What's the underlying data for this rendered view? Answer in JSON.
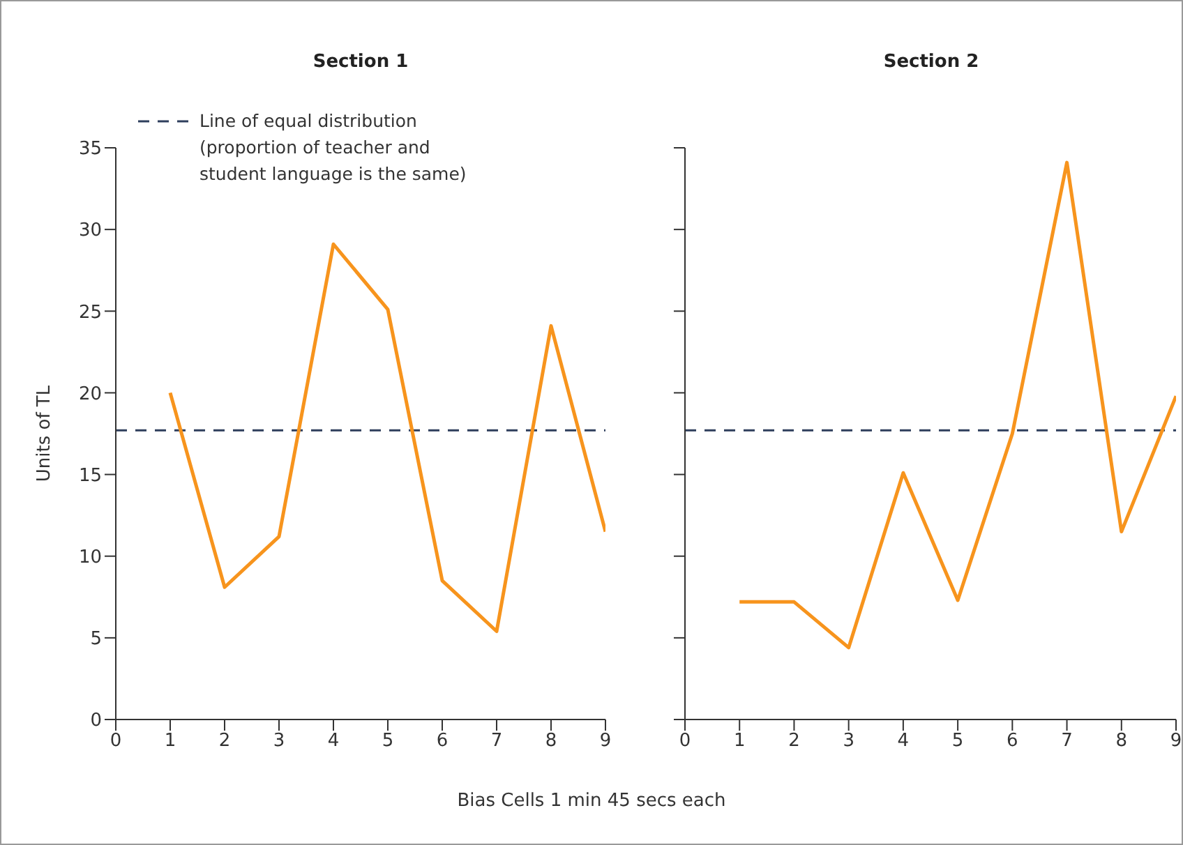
{
  "chart_data": [
    {
      "type": "line",
      "title": "Section 1",
      "xlabel": "Bias Cells 1 min 45 secs each",
      "ylabel": "Units of TL",
      "x": [
        1,
        2,
        3,
        4,
        5,
        6,
        7,
        8,
        9
      ],
      "series": [
        {
          "color": "#f7941d",
          "values": [
            20,
            8.1,
            11.2,
            29.1,
            25.1,
            8.5,
            5.4,
            24.1,
            11.5
          ]
        }
      ],
      "xlim": [
        0,
        9
      ],
      "xticks": [
        0,
        1,
        2,
        3,
        4,
        5,
        6,
        7,
        8,
        9
      ],
      "ylim": [
        0,
        35
      ],
      "yticks": [
        0,
        5,
        10,
        15,
        20,
        25,
        30,
        35
      ],
      "marker": "none",
      "ref_lines": [
        {
          "axis": "y",
          "value": 17.7,
          "label": "Line of equal distribution (proportion of teacher and student language is the same)",
          "color": "#2e3e5c",
          "line_style": "dashed"
        }
      ]
    },
    {
      "type": "line",
      "title": "Section 2",
      "x": [
        1,
        2,
        3,
        4,
        5,
        6,
        7,
        8,
        9
      ],
      "series": [
        {
          "color": "#f7941d",
          "values": [
            7.2,
            7.2,
            4.4,
            15.1,
            7.3,
            17.5,
            34.1,
            11.5,
            19.8
          ]
        }
      ],
      "xlim": [
        0,
        9
      ],
      "xticks": [
        0,
        1,
        2,
        3,
        4,
        5,
        6,
        7,
        8,
        9
      ],
      "ylim": [
        0,
        35
      ],
      "yticks": [
        0,
        5,
        10,
        15,
        20,
        25,
        30,
        35
      ],
      "marker": "none",
      "tick_labels": "x",
      "ref_lines": [
        {
          "axis": "y",
          "value": 17.7,
          "color": "#2e3e5c",
          "line_style": "dashed"
        }
      ]
    }
  ]
}
